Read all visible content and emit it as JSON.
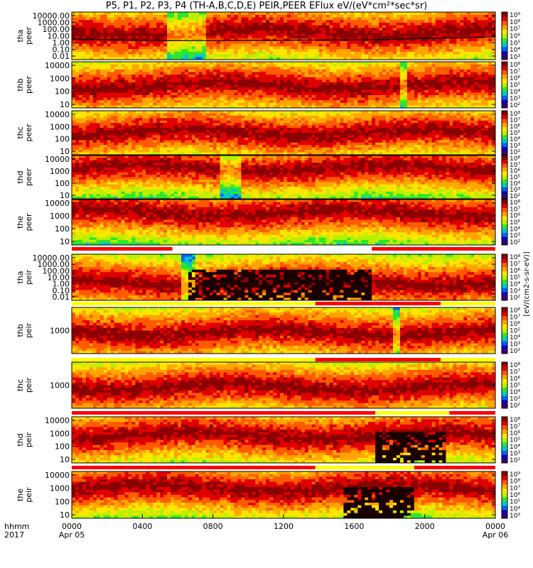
{
  "title": "P5, P1, P2, P3, P4 (TH-A,B,C,D,E) PEIR,PEER EFlux eV/(eV*cm²*sec*sr)",
  "time_axis": {
    "row_label_top": "hhmm",
    "row_label_bottom": "2017",
    "ticks": [
      {
        "label": "0000",
        "date": "Apr 05",
        "hours": 0
      },
      {
        "label": "0400",
        "date": "",
        "hours": 4
      },
      {
        "label": "0800",
        "date": "",
        "hours": 8
      },
      {
        "label": "1200",
        "date": "",
        "hours": 12
      },
      {
        "label": "1600",
        "date": "",
        "hours": 16
      },
      {
        "label": "2000",
        "date": "",
        "hours": 20
      },
      {
        "label": "0000",
        "date": "Apr 06",
        "hours": 24
      }
    ]
  },
  "colorbar_label": "[eV/(cm2-s-sr-eV)]",
  "colors": {
    "spectrogram": [
      "#1a0000",
      "#8b0000",
      "#e00000",
      "#ff5a00",
      "#ffa500",
      "#ffe500",
      "#b8f000",
      "#2ee62e",
      "#00c8c8",
      "#0064ff",
      "#1400b4",
      "#3c006e"
    ],
    "colorbar": [
      "#3c006e",
      "#1400b4",
      "#0064ff",
      "#00c8c8",
      "#2ee62e",
      "#b8f000",
      "#ffe500",
      "#ffa500",
      "#ff5a00",
      "#e00000",
      "#8b0000"
    ],
    "status_bar": "#ff0000",
    "status_bar_alt": "#ffff00",
    "frame": "#000000"
  },
  "chart_data": {
    "type": "heatmap",
    "xlabel": "hhmm 2017",
    "xlim": [
      0,
      24
    ],
    "panels": [
      {
        "label1": "tha",
        "label2": "peer",
        "yticks": [
          "10000.00",
          "1000.00",
          "100.00",
          "10.00",
          "1.00",
          "0.10",
          "0.01"
        ],
        "ylim_decades": [
          -2,
          4
        ],
        "cbar_ticks": [
          "10⁹",
          "10⁸",
          "10⁷",
          "10⁶",
          "10⁵",
          "10⁴",
          "10³"
        ],
        "base": 0.42,
        "lo_hours": [
          5.5,
          7.5
        ],
        "line_hours": [
          0,
          5.4,
          5.6,
          17,
          24
        ],
        "line_decades": [
          0.6,
          0.4,
          0.4,
          0.5,
          0.9
        ]
      },
      {
        "label1": "thb",
        "label2": "peer",
        "yticks": [
          "10000",
          "1000",
          "100",
          "10"
        ],
        "ylim_decades": [
          0.8,
          4.3
        ],
        "cbar_ticks": [
          "10⁸",
          "10⁷",
          "10⁶",
          "10⁵",
          "10⁴",
          "10³",
          "10²"
        ],
        "base": 0.52,
        "lo_hours": [
          18.6,
          18.9
        ]
      },
      {
        "label1": "thc",
        "label2": "peer",
        "yticks": [
          "10000",
          "1000",
          "100",
          "10"
        ],
        "ylim_decades": [
          0.8,
          4.3
        ],
        "cbar_ticks": [
          "10⁸",
          "10⁷",
          "10⁶",
          "10⁵",
          "10⁴",
          "10³",
          "10²"
        ],
        "base": 0.5,
        "lo_hours": []
      },
      {
        "label1": "thd",
        "label2": "peer",
        "yticks": [
          "10000",
          "1000",
          "100",
          "10"
        ],
        "ylim_decades": [
          0.8,
          4.3
        ],
        "cbar_ticks": [
          "10⁸",
          "10⁷",
          "10⁶",
          "10⁵",
          "10⁴",
          "10³",
          "10²"
        ],
        "base": 0.28,
        "lo_hours": [
          8.5,
          9.5
        ]
      },
      {
        "label1": "the",
        "label2": "peer",
        "yticks": [
          "10000",
          "1000",
          "100",
          "10"
        ],
        "ylim_decades": [
          0.8,
          4.3
        ],
        "cbar_ticks": [
          "10⁸",
          "10⁷",
          "10⁶",
          "10⁵",
          "10⁴",
          "10³",
          "10²"
        ],
        "base": 0.28,
        "lo_hours": []
      },
      {
        "label1": "tha",
        "label2": "peir",
        "yticks": [
          "10000.00",
          "1000.00",
          "100.00",
          "10.00",
          "1.00",
          "0.10",
          "0.01"
        ],
        "ylim_decades": [
          -2,
          4
        ],
        "cbar_ticks": [
          "10⁸",
          "10⁷",
          "10⁶",
          "10⁵",
          "10⁴",
          "10³",
          "10²"
        ],
        "base": 0.62,
        "lo_hours": [
          6.2,
          7.0
        ],
        "black_hours": [
          6.6,
          17.0
        ],
        "status_segments": [
          {
            "from": 0,
            "to": 5.7,
            "color": "red"
          },
          {
            "from": 17.0,
            "to": 24,
            "color": "red"
          }
        ]
      },
      {
        "label1": "thb",
        "label2": "peir",
        "yticks": [
          "1000"
        ],
        "ylim_decades": [
          1.5,
          4.8
        ],
        "cbar_ticks": [
          "10⁸",
          "10⁷",
          "10⁶",
          "10⁵",
          "10⁴",
          "10³",
          "10²"
        ],
        "base": 0.55,
        "lo_hours": [
          18.2,
          18.5
        ],
        "status_segments": [
          {
            "from": 0,
            "to": 13.8,
            "color": "yellow"
          },
          {
            "from": 13.8,
            "to": 20.9,
            "color": "red"
          },
          {
            "from": 20.9,
            "to": 24,
            "color": "yellow"
          }
        ]
      },
      {
        "label1": "thc",
        "label2": "peir",
        "yticks": [
          "1000"
        ],
        "ylim_decades": [
          1.5,
          4.8
        ],
        "cbar_ticks": [
          "10⁸",
          "10⁷",
          "10⁶",
          "10⁵",
          "10⁴",
          "10³",
          "10²"
        ],
        "base": 0.55,
        "lo_hours": [],
        "status_segments": [
          {
            "from": 0,
            "to": 13.8,
            "color": "yellow"
          },
          {
            "from": 13.8,
            "to": 20.9,
            "color": "red"
          },
          {
            "from": 20.9,
            "to": 24,
            "color": "yellow"
          }
        ]
      },
      {
        "label1": "thd",
        "label2": "peir",
        "yticks": [
          "10000",
          "1000",
          "100",
          "10"
        ],
        "ylim_decades": [
          0.8,
          4.3
        ],
        "cbar_ticks": [
          "10⁸",
          "10⁷",
          "10⁶",
          "10⁵",
          "10⁴",
          "10³",
          "10²"
        ],
        "base": 0.4,
        "lo_hours": [],
        "black_hours": [
          17.2,
          21.2
        ],
        "status_segments": [
          {
            "from": 0,
            "to": 17.2,
            "color": "red"
          },
          {
            "from": 17.2,
            "to": 21.4,
            "color": "yellow"
          },
          {
            "from": 21.4,
            "to": 24,
            "color": "red"
          }
        ]
      },
      {
        "label1": "the",
        "label2": "peir",
        "yticks": [
          "10000",
          "1000",
          "100",
          "10"
        ],
        "ylim_decades": [
          0.8,
          4.3
        ],
        "cbar_ticks": [
          "10⁹",
          "10⁸",
          "10⁷",
          "10⁶",
          "10⁵",
          "10⁴",
          "10³"
        ],
        "base": 0.35,
        "lo_hours": [],
        "black_hours": [
          15.3,
          19.4
        ],
        "status_segments": [
          {
            "from": 0,
            "to": 13.8,
            "color": "red"
          },
          {
            "from": 13.8,
            "to": 19.4,
            "color": "yellow"
          },
          {
            "from": 19.4,
            "to": 24,
            "color": "red"
          }
        ]
      }
    ]
  }
}
